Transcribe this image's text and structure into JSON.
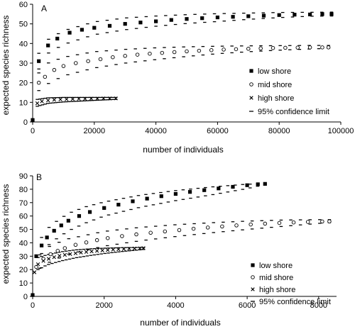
{
  "chart_data": [
    {
      "panel": "A",
      "type": "scatter",
      "xlabel": "number of individuals",
      "ylabel": "expected species richness",
      "xlim": [
        0,
        100000
      ],
      "ylim": [
        0,
        60
      ],
      "xticks": [
        0,
        20000,
        40000,
        60000,
        80000,
        100000
      ],
      "yticks": [
        0,
        10,
        20,
        30,
        40,
        50,
        60
      ],
      "grid": false,
      "legend_position": "right",
      "legend": [
        "low shore",
        "mid shore",
        "high shore",
        "95% confidence limit"
      ],
      "series": [
        {
          "name": "low shore",
          "marker": "square",
          "max_x": 97000,
          "points": [
            [
              0,
              1
            ],
            [
              2000,
              31
            ],
            [
              5000,
              39
            ],
            [
              8000,
              42.5
            ],
            [
              12000,
              45.5
            ],
            [
              16000,
              47
            ],
            [
              20000,
              48
            ],
            [
              25000,
              49
            ],
            [
              30000,
              50
            ],
            [
              35000,
              50.7
            ],
            [
              40000,
              51.3
            ],
            [
              45000,
              52
            ],
            [
              50000,
              52.5
            ],
            [
              55000,
              52.9
            ],
            [
              60000,
              53.3
            ],
            [
              65000,
              53.6
            ],
            [
              70000,
              53.9
            ],
            [
              75000,
              54.2
            ],
            [
              80000,
              54.5
            ],
            [
              85000,
              54.7
            ],
            [
              90000,
              54.8
            ],
            [
              94000,
              55
            ],
            [
              97000,
              55
            ]
          ],
          "ci_upper": [
            [
              2000,
              35
            ],
            [
              5000,
              42
            ],
            [
              10000,
              46.5
            ],
            [
              20000,
              51
            ],
            [
              30000,
              53
            ],
            [
              40000,
              54
            ],
            [
              50000,
              54.7
            ],
            [
              60000,
              55.2
            ],
            [
              70000,
              55.5
            ],
            [
              80000,
              55.8
            ],
            [
              90000,
              55.9
            ],
            [
              97000,
              56
            ]
          ],
          "ci_lower": [
            [
              2000,
              27
            ],
            [
              5000,
              35
            ],
            [
              10000,
              39.5
            ],
            [
              20000,
              44.5
            ],
            [
              30000,
              47
            ],
            [
              40000,
              48.8
            ],
            [
              50000,
              50.2
            ],
            [
              60000,
              51.2
            ],
            [
              70000,
              52.3
            ],
            [
              80000,
              53.2
            ],
            [
              90000,
              53.9
            ],
            [
              97000,
              54
            ]
          ]
        },
        {
          "name": "mid shore",
          "marker": "circle",
          "max_x": 96000,
          "points": [
            [
              2000,
              20
            ],
            [
              4000,
              23
            ],
            [
              7000,
              26.5
            ],
            [
              10000,
              28.5
            ],
            [
              14000,
              30
            ],
            [
              18000,
              31
            ],
            [
              22000,
              32
            ],
            [
              26000,
              33
            ],
            [
              30000,
              33.7
            ],
            [
              34000,
              34.3
            ],
            [
              38000,
              34.8
            ],
            [
              42000,
              35.2
            ],
            [
              46000,
              35.6
            ],
            [
              50000,
              36
            ],
            [
              54000,
              36.3
            ],
            [
              58000,
              36.6
            ],
            [
              62000,
              36.9
            ],
            [
              66000,
              37.1
            ],
            [
              70000,
              37.3
            ],
            [
              74000,
              37.5
            ],
            [
              78000,
              37.7
            ],
            [
              82000,
              37.8
            ],
            [
              86000,
              37.9
            ],
            [
              90000,
              38
            ],
            [
              94000,
              38
            ],
            [
              96000,
              38
            ]
          ],
          "ci_upper": [
            [
              2000,
              25
            ],
            [
              5000,
              30
            ],
            [
              10000,
              33
            ],
            [
              20000,
              35.8
            ],
            [
              30000,
              37
            ],
            [
              40000,
              37.8
            ],
            [
              50000,
              38.3
            ],
            [
              60000,
              38.6
            ],
            [
              70000,
              38.8
            ],
            [
              80000,
              38.9
            ],
            [
              90000,
              39
            ],
            [
              96000,
              39
            ]
          ],
          "ci_lower": [
            [
              2000,
              16
            ],
            [
              5000,
              19.5
            ],
            [
              10000,
              23.5
            ],
            [
              20000,
              27.5
            ],
            [
              30000,
              30
            ],
            [
              40000,
              31.8
            ],
            [
              50000,
              33.4
            ],
            [
              60000,
              34.8
            ],
            [
              70000,
              35.8
            ],
            [
              80000,
              36.6
            ],
            [
              90000,
              37.2
            ],
            [
              96000,
              37.5
            ]
          ]
        },
        {
          "name": "high shore",
          "marker": "x",
          "max_x": 27000,
          "points": [
            [
              1500,
              9.5
            ],
            [
              3000,
              10.5
            ],
            [
              5000,
              11
            ],
            [
              7000,
              11.3
            ],
            [
              9000,
              11.5
            ],
            [
              11000,
              11.6
            ],
            [
              13000,
              11.7
            ],
            [
              15000,
              11.8
            ],
            [
              17000,
              11.8
            ],
            [
              19000,
              11.9
            ],
            [
              21000,
              11.9
            ],
            [
              23000,
              12
            ],
            [
              25000,
              12
            ],
            [
              27000,
              12
            ]
          ],
          "ci_upper": [
            [
              1500,
              11.5
            ],
            [
              5000,
              12.3
            ],
            [
              10000,
              12.5
            ],
            [
              15000,
              12.5
            ],
            [
              20000,
              12.5
            ],
            [
              27000,
              12.5
            ]
          ],
          "ci_lower": [
            [
              1500,
              8
            ],
            [
              5000,
              9.5
            ],
            [
              10000,
              10.2
            ],
            [
              15000,
              10.6
            ],
            [
              20000,
              11
            ],
            [
              27000,
              11.5
            ]
          ]
        }
      ]
    },
    {
      "panel": "B",
      "type": "scatter",
      "xlabel": "number of individuals",
      "ylabel": "expected species richness",
      "xlim": [
        0,
        8500
      ],
      "ylim": [
        0,
        90
      ],
      "xticks": [
        0,
        2000,
        4000,
        6000,
        8000
      ],
      "yticks": [
        0,
        10,
        20,
        30,
        40,
        50,
        60,
        70,
        80,
        90
      ],
      "grid": false,
      "legend_position": "bottom-right",
      "legend": [
        "low shore",
        "mid shore",
        "high shore",
        "95% confidence limit"
      ],
      "series": [
        {
          "name": "low shore",
          "marker": "square",
          "max_x": 6500,
          "points": [
            [
              0,
              1
            ],
            [
              100,
              30
            ],
            [
              250,
              38
            ],
            [
              400,
              44
            ],
            [
              600,
              49
            ],
            [
              800,
              53
            ],
            [
              1000,
              56.5
            ],
            [
              1300,
              60
            ],
            [
              1600,
              63
            ],
            [
              2000,
              66
            ],
            [
              2400,
              68.5
            ],
            [
              2800,
              71
            ],
            [
              3200,
              73
            ],
            [
              3600,
              74.8
            ],
            [
              4000,
              76.5
            ],
            [
              4400,
              78
            ],
            [
              4800,
              79.3
            ],
            [
              5200,
              80.6
            ],
            [
              5600,
              81.8
            ],
            [
              6000,
              83
            ],
            [
              6300,
              83.7
            ],
            [
              6500,
              84
            ]
          ],
          "ci_upper": [
            [
              250,
              44
            ],
            [
              500,
              53
            ],
            [
              1000,
              62
            ],
            [
              1500,
              67
            ],
            [
              2000,
              70.5
            ],
            [
              3000,
              75.5
            ],
            [
              4000,
              79
            ],
            [
              5000,
              81.7
            ],
            [
              6000,
              83.8
            ],
            [
              6500,
              84
            ]
          ],
          "ci_lower": [
            [
              250,
              32
            ],
            [
              500,
              40
            ],
            [
              1000,
              49
            ],
            [
              1500,
              55
            ],
            [
              2000,
              60
            ],
            [
              3000,
              66.5
            ],
            [
              4000,
              71.5
            ],
            [
              5000,
              75.8
            ],
            [
              6000,
              80.5
            ],
            [
              6500,
              83.5
            ]
          ]
        },
        {
          "name": "mid shore",
          "marker": "circle",
          "max_x": 8300,
          "points": [
            [
              100,
              22
            ],
            [
              300,
              28
            ],
            [
              500,
              31.5
            ],
            [
              700,
              34
            ],
            [
              900,
              36
            ],
            [
              1200,
              38.5
            ],
            [
              1500,
              40.3
            ],
            [
              1800,
              42
            ],
            [
              2100,
              43.5
            ],
            [
              2500,
              45
            ],
            [
              2900,
              46.3
            ],
            [
              3300,
              47.5
            ],
            [
              3700,
              48.5
            ],
            [
              4100,
              49.5
            ],
            [
              4500,
              50.5
            ],
            [
              4900,
              51.4
            ],
            [
              5300,
              52.2
            ],
            [
              5700,
              53
            ],
            [
              6100,
              53.7
            ],
            [
              6500,
              54.3
            ],
            [
              6900,
              54.8
            ],
            [
              7300,
              55.2
            ],
            [
              7700,
              55.6
            ],
            [
              8100,
              55.9
            ],
            [
              8300,
              56
            ]
          ],
          "ci_upper": [
            [
              200,
              31
            ],
            [
              500,
              38
            ],
            [
              1000,
              43
            ],
            [
              2000,
              48.5
            ],
            [
              3000,
              51.5
            ],
            [
              4000,
              53.5
            ],
            [
              5000,
              55
            ],
            [
              6000,
              56.2
            ],
            [
              7000,
              57
            ],
            [
              8000,
              57.3
            ],
            [
              8300,
              57.3
            ]
          ],
          "ci_lower": [
            [
              200,
              21
            ],
            [
              500,
              26
            ],
            [
              1000,
              31.5
            ],
            [
              2000,
              37.5
            ],
            [
              3000,
              41.5
            ],
            [
              4000,
              44.7
            ],
            [
              5000,
              47.5
            ],
            [
              6000,
              50
            ],
            [
              7000,
              52.3
            ],
            [
              8000,
              54.5
            ],
            [
              8300,
              55
            ]
          ]
        },
        {
          "name": "high shore",
          "marker": "x",
          "max_x": 3100,
          "points": [
            [
              50,
              18
            ],
            [
              150,
              24
            ],
            [
              300,
              26.5
            ],
            [
              450,
              28
            ],
            [
              600,
              29.3
            ],
            [
              750,
              30.3
            ],
            [
              900,
              31
            ],
            [
              1050,
              31.6
            ],
            [
              1200,
              32.2
            ],
            [
              1350,
              32.7
            ],
            [
              1500,
              33.2
            ],
            [
              1650,
              33.6
            ],
            [
              1800,
              34
            ],
            [
              1950,
              34.3
            ],
            [
              2100,
              34.6
            ],
            [
              2250,
              34.9
            ],
            [
              2400,
              35.2
            ],
            [
              2550,
              35.4
            ],
            [
              2700,
              35.6
            ],
            [
              2850,
              35.8
            ],
            [
              3000,
              35.9
            ],
            [
              3100,
              36
            ]
          ],
          "ci_upper": [
            [
              150,
              29
            ],
            [
              400,
              31
            ],
            [
              800,
              33.3
            ],
            [
              1200,
              34.7
            ],
            [
              1600,
              35.5
            ],
            [
              2000,
              36
            ],
            [
              2500,
              36.4
            ],
            [
              3100,
              36.5
            ]
          ],
          "ci_lower": [
            [
              150,
              20
            ],
            [
              400,
              23.5
            ],
            [
              800,
              26.5
            ],
            [
              1200,
              28.8
            ],
            [
              1600,
              30.5
            ],
            [
              2000,
              32
            ],
            [
              2500,
              33.5
            ],
            [
              3100,
              35
            ]
          ]
        }
      ]
    }
  ]
}
